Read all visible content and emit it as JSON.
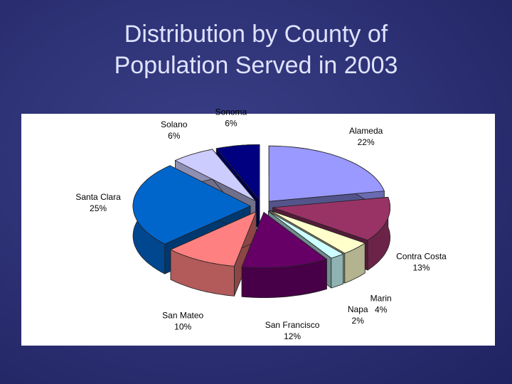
{
  "chart_data": {
    "type": "pie",
    "title": "Distribution by County of Population Served in 2003",
    "categories": [
      "Alameda",
      "Contra Costa",
      "Marin",
      "Napa",
      "San Francisco",
      "San Mateo",
      "Santa Clara",
      "Solano",
      "Sonoma"
    ],
    "values": [
      22,
      13,
      4,
      2,
      12,
      10,
      25,
      6,
      6
    ],
    "value_labels": [
      "22%",
      "13%",
      "4%",
      "2%",
      "12%",
      "10%",
      "25%",
      "6%",
      "6%"
    ],
    "colors": [
      "#9999ff",
      "#993366",
      "#ffffcc",
      "#ccffff",
      "#660066",
      "#ff8080",
      "#0066cc",
      "#ccccff",
      "#000080"
    ]
  }
}
